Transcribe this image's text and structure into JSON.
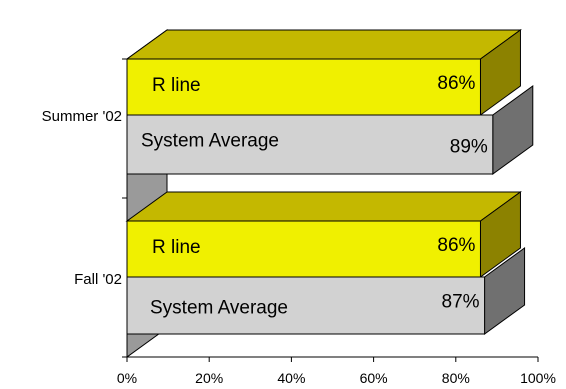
{
  "chart_data": {
    "type": "bar",
    "orientation": "horizontal",
    "style": "3d",
    "categories": [
      "Summer '02",
      "Fall '02"
    ],
    "series": [
      {
        "name": "R line",
        "values": [
          86,
          86
        ],
        "value_labels": [
          "86%",
          "86%"
        ]
      },
      {
        "name": "System Average",
        "values": [
          89,
          87
        ],
        "value_labels": [
          "89%",
          "87%"
        ]
      }
    ],
    "x_ticks": [
      "0%",
      "20%",
      "40%",
      "60%",
      "80%",
      "100%"
    ],
    "xlim": [
      0,
      100
    ],
    "grid": false,
    "legend": "none",
    "colors": {
      "r_line_front": "#F0F000",
      "r_line_top": "#C4B800",
      "r_line_side": "#8C8200",
      "system_front": "#D2D2D2",
      "system_side": "#707070",
      "back_wall": "#9A9A9A"
    }
  }
}
